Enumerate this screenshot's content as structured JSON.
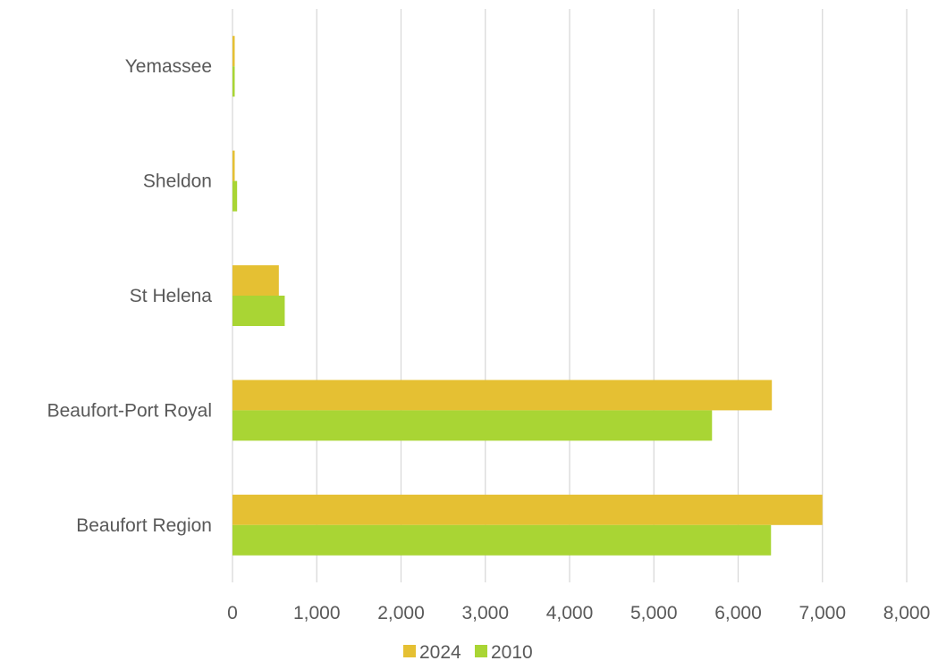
{
  "chart_data": {
    "type": "bar",
    "orientation": "horizontal",
    "categories": [
      "Yemassee",
      "Sheldon",
      "St Helena",
      "Beaufort-Port Royal",
      "Beaufort Region"
    ],
    "series": [
      {
        "name": "2024",
        "color": "#E5C033",
        "values": [
          15,
          25,
          550,
          6400,
          7000
        ]
      },
      {
        "name": "2010",
        "color": "#A9D534",
        "values": [
          20,
          55,
          620,
          5690,
          6390
        ]
      }
    ],
    "xlim": [
      0,
      8000
    ],
    "xticks": [
      "0",
      "1,000",
      "2,000",
      "3,000",
      "4,000",
      "5,000",
      "6,000",
      "7,000",
      "8,000"
    ],
    "grid": true,
    "legend": "bottom",
    "title": "",
    "xlabel": "",
    "ylabel": ""
  }
}
